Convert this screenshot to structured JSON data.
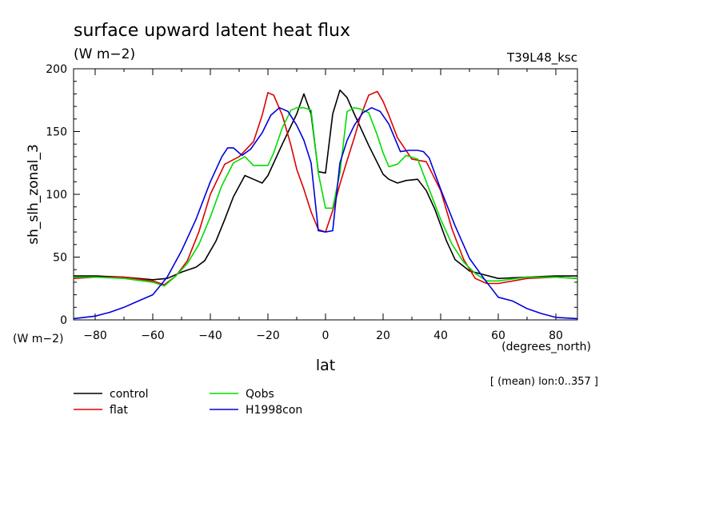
{
  "chart_data": {
    "type": "line",
    "title": "surface upward latent heat flux",
    "units": "(W m−2)",
    "experiment": "T39L48_ksc",
    "ylabel": "sh_slh_zonal_3",
    "y_units": "(W m−2)",
    "xlabel": "lat",
    "x_units": "(degrees_north)",
    "averaging_note": "[ (mean) lon:0..357 ]",
    "xlim": [
      -87.5,
      87.5
    ],
    "ylim": [
      0,
      200
    ],
    "x_ticks": [
      -80,
      -60,
      -40,
      -20,
      0,
      20,
      40,
      60,
      80
    ],
    "x_tick_labels": [
      "−80",
      "−60",
      "−40",
      "−20",
      "0",
      "20",
      "40",
      "60",
      "80"
    ],
    "y_ticks": [
      0,
      50,
      100,
      150,
      200
    ],
    "y_tick_labels": [
      "0",
      "50",
      "100",
      "150",
      "200"
    ],
    "legend_placement": "below",
    "series": [
      {
        "name": "control",
        "color": "#000000",
        "x": [
          -87.5,
          -80,
          -70,
          -60,
          -55,
          -50,
          -45,
          -42,
          -38,
          -35,
          -32,
          -28,
          -25,
          -22,
          -20,
          -15,
          -10,
          -7.5,
          -5,
          -2.5,
          0,
          2.5,
          5,
          7.5,
          10,
          15,
          20,
          22,
          25,
          28,
          32,
          35,
          38,
          42,
          45,
          50,
          55,
          60,
          70,
          80,
          87.5
        ],
        "y": [
          35,
          35,
          34,
          32,
          33,
          38,
          42,
          47,
          63,
          80,
          98,
          115,
          112,
          109,
          115,
          140,
          164,
          180,
          164,
          118,
          117,
          164,
          183,
          177,
          164,
          139,
          116,
          112,
          109,
          111,
          112,
          103,
          88,
          63,
          48,
          39,
          36,
          33,
          34,
          35,
          35
        ]
      },
      {
        "name": "flat",
        "color": "#dd0000",
        "x": [
          -87.5,
          -80,
          -70,
          -60,
          -56,
          -52,
          -48,
          -44,
          -40,
          -35,
          -30,
          -25,
          -22,
          -20,
          -18,
          -15,
          -12,
          -10,
          -7.5,
          -5,
          -2.5,
          0,
          2.5,
          5,
          7.5,
          10,
          12,
          15,
          18,
          20,
          22,
          25,
          30,
          35,
          40,
          44,
          48,
          52,
          56,
          60,
          70,
          80,
          87.5
        ],
        "y": [
          33,
          34,
          34,
          31,
          28,
          35,
          47,
          70,
          100,
          124,
          130,
          142,
          163,
          181,
          179,
          163,
          139,
          120,
          104,
          86,
          72,
          70,
          87,
          108,
          127,
          145,
          161,
          179,
          182,
          174,
          163,
          145,
          128,
          126,
          103,
          72,
          48,
          33,
          29,
          29,
          33,
          34,
          33
        ]
      },
      {
        "name": "Qobs",
        "color": "#00dd00",
        "x": [
          -87.5,
          -80,
          -70,
          -60,
          -56,
          -52,
          -48,
          -44,
          -40,
          -36,
          -32,
          -28,
          -25,
          -20,
          -18,
          -15,
          -12,
          -10,
          -7.5,
          -5,
          -2.5,
          0,
          2.5,
          5,
          7.5,
          10,
          12,
          15,
          18,
          20,
          22,
          25,
          28,
          32,
          36,
          40,
          44,
          48,
          52,
          56,
          60,
          70,
          80,
          87.5
        ],
        "y": [
          34,
          34,
          33,
          30,
          27,
          35,
          45,
          60,
          82,
          107,
          125,
          130,
          123,
          123,
          133,
          153,
          167,
          169,
          169,
          167,
          117,
          89,
          89,
          117,
          166,
          169,
          168,
          165,
          147,
          133,
          122,
          124,
          131,
          128,
          104,
          80,
          60,
          46,
          37,
          31,
          31,
          34,
          34,
          33
        ]
      },
      {
        "name": "H1998con",
        "color": "#0000dd",
        "x": [
          -87.5,
          -80,
          -75,
          -70,
          -65,
          -60,
          -55,
          -50,
          -45,
          -40,
          -36,
          -34,
          -32,
          -29,
          -26,
          -22,
          -19,
          -16,
          -13,
          -10,
          -7.5,
          -5,
          -2.5,
          0,
          2.5,
          5,
          7.5,
          10,
          13,
          16,
          19,
          22,
          26,
          29,
          32,
          34,
          36,
          40,
          45,
          50,
          55,
          60,
          65,
          70,
          75,
          80,
          87.5
        ],
        "y": [
          1,
          3,
          6,
          10,
          15,
          20,
          34,
          55,
          80,
          110,
          130,
          137,
          137,
          131,
          136,
          149,
          163,
          169,
          166,
          155,
          143,
          125,
          71,
          70,
          71,
          125,
          143,
          155,
          165,
          169,
          166,
          156,
          134,
          135,
          135,
          134,
          129,
          104,
          75,
          49,
          33,
          18,
          15,
          9,
          5,
          2,
          1
        ]
      }
    ]
  }
}
